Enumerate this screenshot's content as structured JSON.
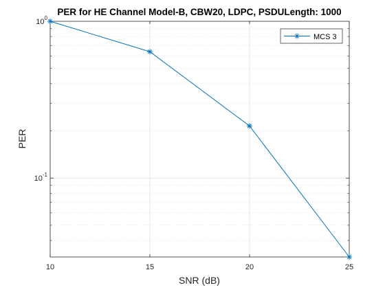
{
  "chart_data": {
    "type": "line",
    "title": "PER for HE Channel Model-B, CBW20, LDPC, PSDULength: 1000",
    "xlabel": "SNR (dB)",
    "ylabel": "PER",
    "yscale": "log",
    "xlim": [
      10,
      25
    ],
    "ylim": [
      0.0314,
      1.0
    ],
    "grid": true,
    "legend_position": "top-right",
    "x": [
      10,
      15,
      20,
      25
    ],
    "xticks": [
      {
        "value": 10,
        "label": "10"
      },
      {
        "value": 15,
        "label": "15"
      },
      {
        "value": 20,
        "label": "20"
      },
      {
        "value": 25,
        "label": "25"
      }
    ],
    "yticks": [
      {
        "value": 1.0,
        "base": "10",
        "exp": "0"
      },
      {
        "value": 0.1,
        "base": "10",
        "exp": "-1"
      }
    ],
    "series": [
      {
        "name": "MCS 3",
        "color": "#0072bd",
        "marker": "asterisk",
        "values": [
          1.0,
          0.64,
          0.215,
          0.0314
        ]
      }
    ]
  }
}
